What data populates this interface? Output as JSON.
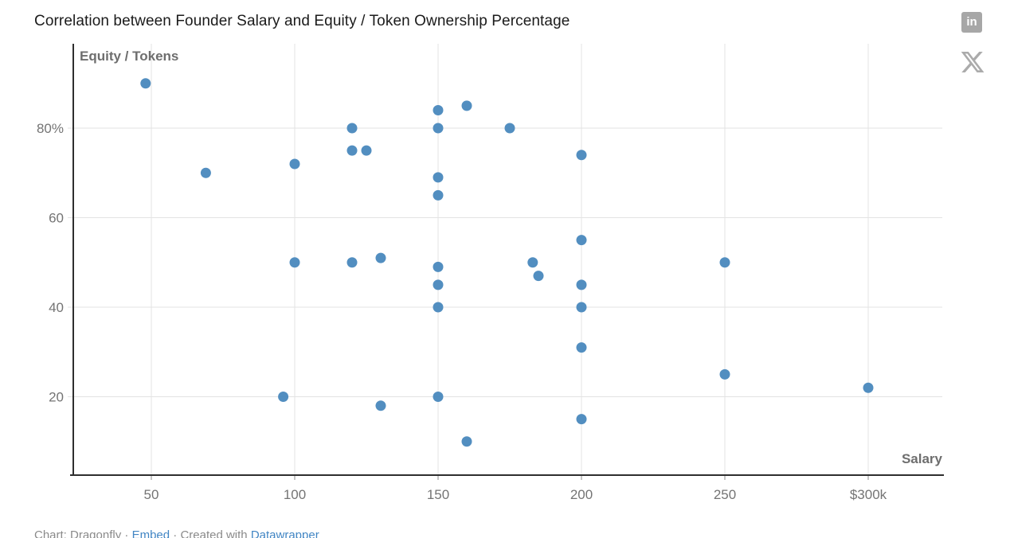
{
  "header": {
    "title": "Correlation between Founder Salary and Equity / Token Ownership Percentage",
    "linkedin_glyph": "in"
  },
  "chart_data": {
    "type": "scatter",
    "title": "Correlation between Founder Salary and Equity / Token Ownership Percentage",
    "xlabel": "Salary",
    "ylabel": "Equity / Tokens",
    "x_axis": {
      "ticks": [
        50,
        100,
        150,
        200,
        250,
        300
      ],
      "tick_labels": [
        "50",
        "100",
        "150",
        "200",
        "250",
        "$300k"
      ],
      "range": [
        23,
        326
      ],
      "unit": "$k"
    },
    "y_axis": {
      "ticks": [
        20,
        40,
        60,
        80
      ],
      "tick_labels": [
        "20",
        "40",
        "60",
        "80%"
      ],
      "range": [
        2,
        99
      ],
      "unit": "%"
    },
    "grid": true,
    "legend": "none",
    "point_color": "#4b89bd",
    "points": [
      [
        48,
        90
      ],
      [
        69,
        70
      ],
      [
        96,
        20
      ],
      [
        100,
        72
      ],
      [
        100,
        50
      ],
      [
        120,
        80
      ],
      [
        120,
        75
      ],
      [
        125,
        75
      ],
      [
        120,
        50
      ],
      [
        130,
        51
      ],
      [
        130,
        18
      ],
      [
        150,
        84
      ],
      [
        150,
        80
      ],
      [
        150,
        69
      ],
      [
        150,
        65
      ],
      [
        150,
        49
      ],
      [
        150,
        45
      ],
      [
        150,
        40
      ],
      [
        150,
        20
      ],
      [
        160,
        85
      ],
      [
        160,
        10
      ],
      [
        175,
        80
      ],
      [
        183,
        50
      ],
      [
        185,
        47
      ],
      [
        200,
        74
      ],
      [
        200,
        55
      ],
      [
        200,
        45
      ],
      [
        200,
        40
      ],
      [
        200,
        31
      ],
      [
        200,
        15
      ],
      [
        250,
        50
      ],
      [
        250,
        25
      ],
      [
        300,
        22
      ]
    ]
  },
  "footer": {
    "chart_credit": "Chart: Dragonfly",
    "separator": " · ",
    "embed_label": "Embed",
    "created_with": "Created with ",
    "datawrapper_label": "Datawrapper",
    "link_color": "#4286c4"
  }
}
